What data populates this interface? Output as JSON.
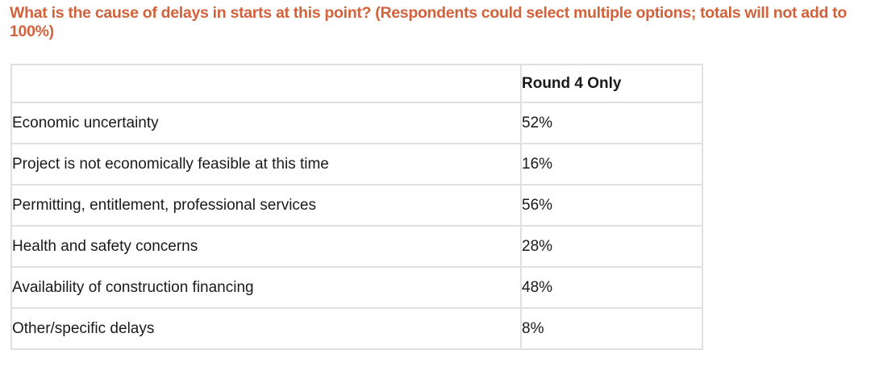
{
  "page": {
    "title": "What is the cause of delays in starts at this point? (Respondents could select multiple options; totals will not add to 100%)"
  },
  "colors": {
    "title_text": "#d2623b",
    "body_text": "#1a1a1a",
    "table_border": "#e0e0e0",
    "background": "#ffffff"
  },
  "chart_data": {
    "type": "table",
    "title": "What is the cause of delays in starts at this point? (Respondents could select multiple options; totals will not add to 100%)",
    "columns": [
      "",
      "Round 4 Only"
    ],
    "rows": [
      {
        "label": "Economic uncertainty",
        "value": "52%"
      },
      {
        "label": "Project is not economically feasible at this time",
        "value": "16%"
      },
      {
        "label": "Permitting, entitlement, professional services",
        "value": "56%"
      },
      {
        "label": "Health and safety concerns",
        "value": "28%"
      },
      {
        "label": "Availability of construction financing",
        "value": "48%"
      },
      {
        "label": "Other/specific delays",
        "value": "8%"
      }
    ],
    "values_numeric": [
      52,
      16,
      56,
      28,
      48,
      8
    ],
    "value_unit": "%",
    "legend_position": "none",
    "grid": "full-cell-borders"
  }
}
